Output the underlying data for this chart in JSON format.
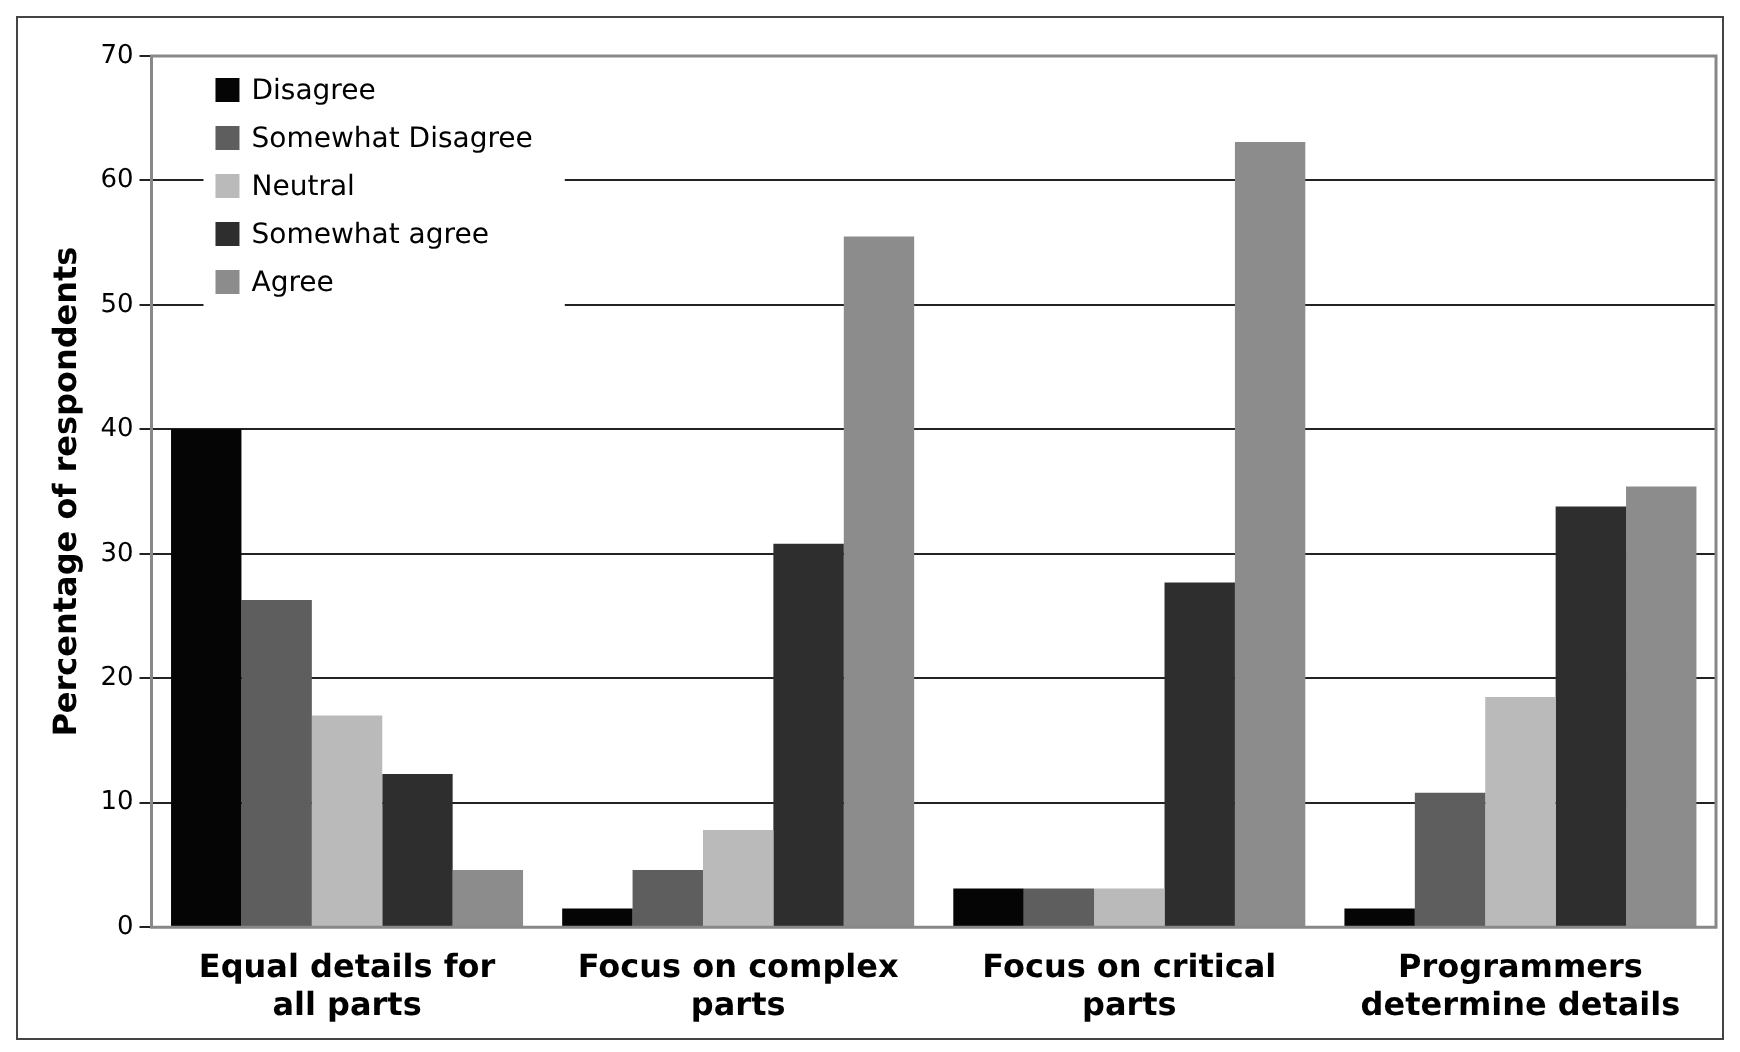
{
  "chart_data": {
    "type": "bar",
    "ylabel": "Percentage of respondents",
    "categories": [
      "Equal details for all parts",
      "Focus on complex parts",
      "Focus on critical parts",
      "Programmers determine details"
    ],
    "series": [
      {
        "name": "Disagree",
        "color": "#050505",
        "values": [
          40,
          1.5,
          3.1,
          1.5
        ]
      },
      {
        "name": "Somewhat Disagree",
        "color": "#5e5e5e",
        "values": [
          26.3,
          4.6,
          3.1,
          10.8
        ]
      },
      {
        "name": "Neutral",
        "color": "#bababa",
        "values": [
          17,
          7.8,
          3.1,
          18.5
        ]
      },
      {
        "name": "Somewhat agree",
        "color": "#2e2e2e",
        "values": [
          12.3,
          30.8,
          27.7,
          33.8
        ]
      },
      {
        "name": "Agree",
        "color": "#8c8c8c",
        "values": [
          4.6,
          55.5,
          63.1,
          35.4
        ]
      }
    ],
    "ylim": [
      0,
      70
    ],
    "yticks": [
      0,
      10,
      20,
      30,
      40,
      50,
      60,
      70
    ],
    "grid": "y",
    "legend": "top left"
  }
}
